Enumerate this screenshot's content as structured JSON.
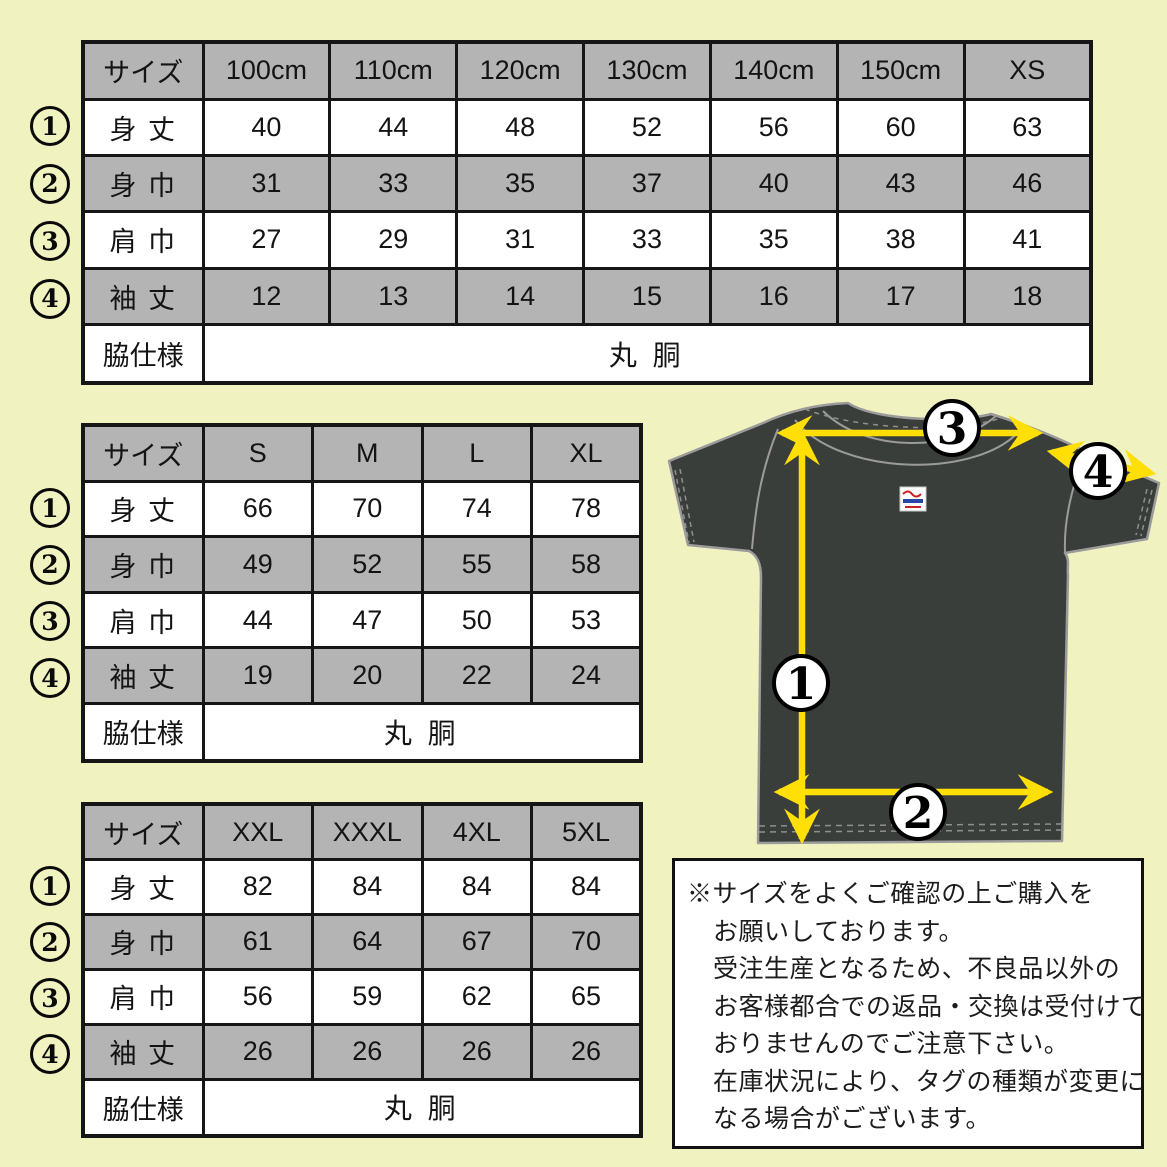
{
  "colors": {
    "bg": "#f0f2c0",
    "tableGray": "#b4b4b4",
    "shirt": "#3a3e3b",
    "shirtOutline": "#9b9b9b",
    "arrowYellow": "#ffdf05",
    "border": "#161616"
  },
  "tables": [
    {
      "name": "kids-sizes",
      "header": [
        "サイズ",
        "100cm",
        "110cm",
        "120cm",
        "130cm",
        "140cm",
        "150cm",
        "XS"
      ],
      "rows": [
        {
          "num": "1",
          "label": "身 丈",
          "values": [
            40,
            44,
            48,
            52,
            56,
            60,
            63
          ]
        },
        {
          "num": "2",
          "label": "身 巾",
          "values": [
            31,
            33,
            35,
            37,
            40,
            43,
            46
          ]
        },
        {
          "num": "3",
          "label": "肩 巾",
          "values": [
            27,
            29,
            31,
            33,
            35,
            38,
            41
          ]
        },
        {
          "num": "4",
          "label": "袖 丈",
          "values": [
            12,
            13,
            14,
            15,
            16,
            17,
            18
          ]
        }
      ],
      "footer": {
        "label": "脇仕様",
        "value": "丸 胴"
      }
    },
    {
      "name": "adult-sizes",
      "header": [
        "サイズ",
        "S",
        "M",
        "L",
        "XL"
      ],
      "rows": [
        {
          "num": "1",
          "label": "身 丈",
          "values": [
            66,
            70,
            74,
            78
          ]
        },
        {
          "num": "2",
          "label": "身 巾",
          "values": [
            49,
            52,
            55,
            58
          ]
        },
        {
          "num": "3",
          "label": "肩 巾",
          "values": [
            44,
            47,
            50,
            53
          ]
        },
        {
          "num": "4",
          "label": "袖 丈",
          "values": [
            19,
            20,
            22,
            24
          ]
        }
      ],
      "footer": {
        "label": "脇仕様",
        "value": "丸 胴"
      }
    },
    {
      "name": "big-sizes",
      "header": [
        "サイズ",
        "XXL",
        "XXXL",
        "4XL",
        "5XL"
      ],
      "rows": [
        {
          "num": "1",
          "label": "身 丈",
          "values": [
            82,
            84,
            84,
            84
          ]
        },
        {
          "num": "2",
          "label": "身 巾",
          "values": [
            61,
            64,
            67,
            70
          ]
        },
        {
          "num": "3",
          "label": "肩 巾",
          "values": [
            56,
            59,
            62,
            65
          ]
        },
        {
          "num": "4",
          "label": "袖 丈",
          "values": [
            26,
            26,
            26,
            26
          ]
        }
      ],
      "footer": {
        "label": "脇仕様",
        "value": "丸 胴"
      }
    }
  ],
  "shirt": {
    "circles": [
      "1",
      "2",
      "3",
      "4"
    ]
  },
  "notice": {
    "lines": [
      "※サイズをよくご確認の上ご購入を",
      "お願いしております。",
      "受注生産となるため、不良品以外の",
      "お客様都合での返品・交換は受付けて",
      "おりませんのでご注意下さい。",
      "在庫状況により、タグの種類が変更に",
      "なる場合がございます。"
    ]
  }
}
